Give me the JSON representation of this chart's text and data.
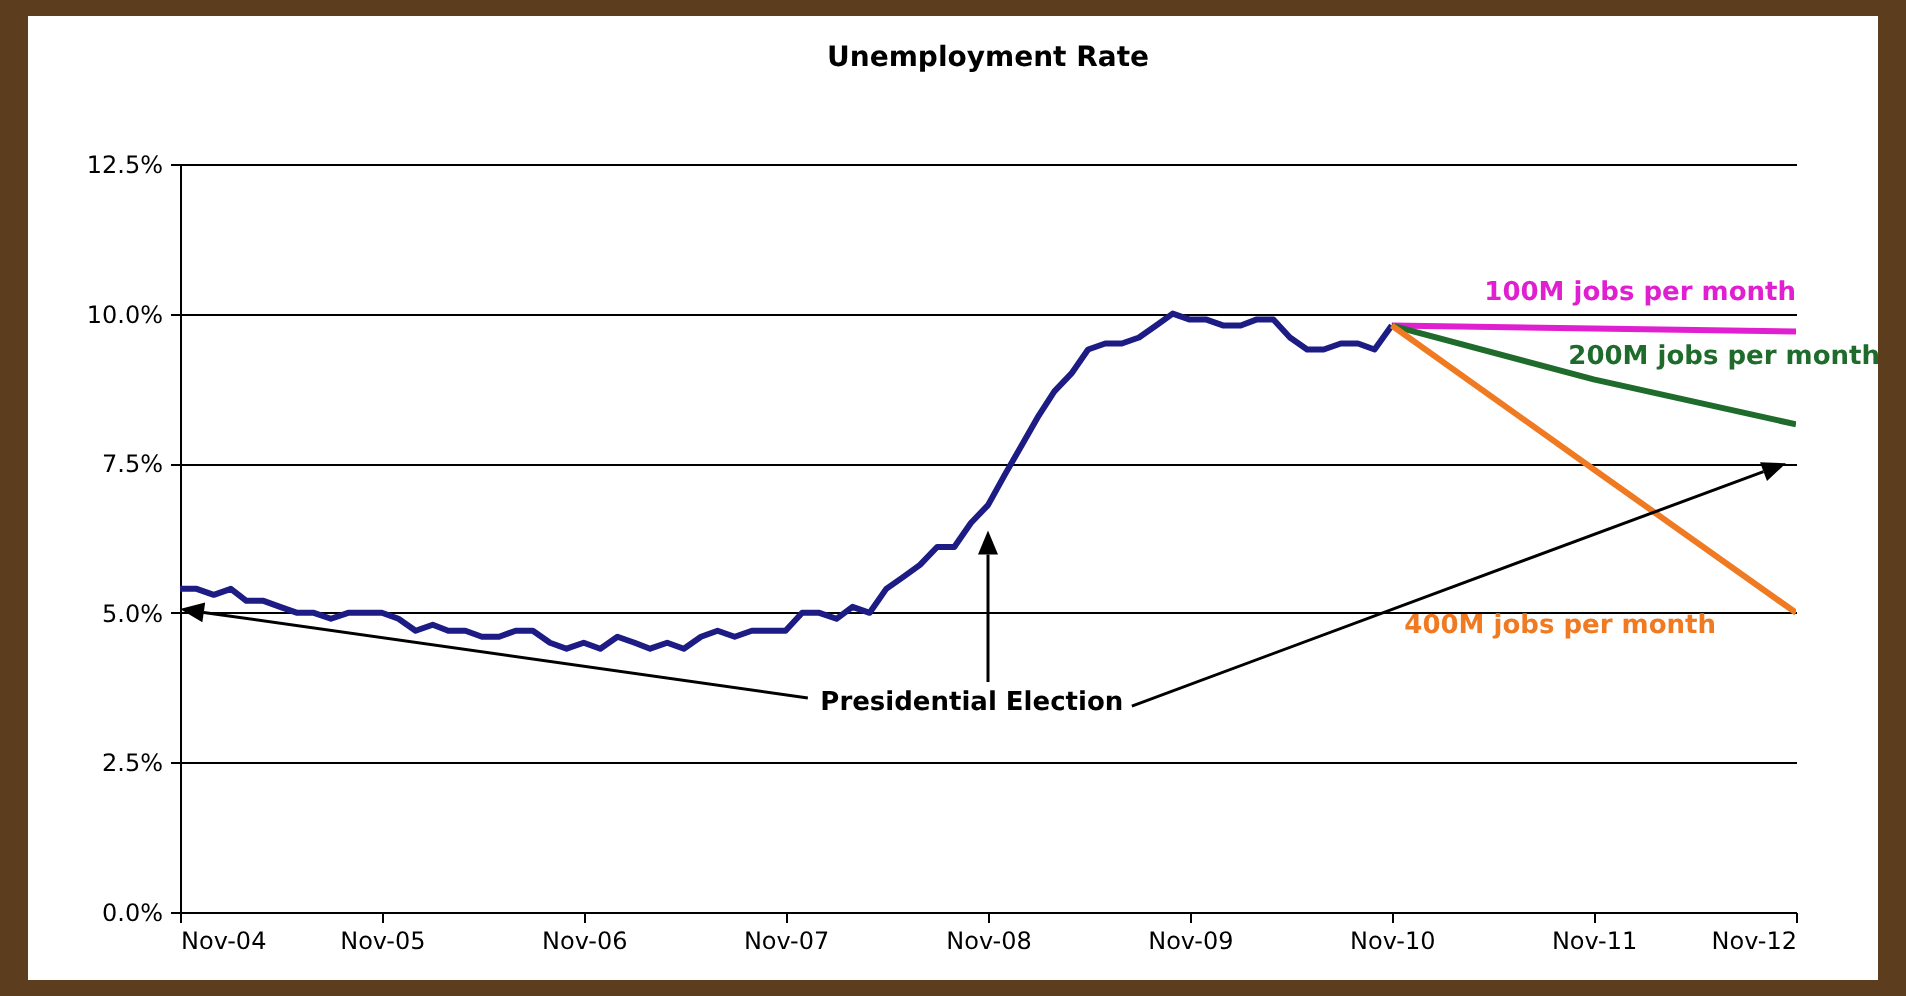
{
  "chart_data": {
    "type": "line",
    "title": "Unemployment Rate",
    "xlim": [
      "2004-11",
      "2012-11"
    ],
    "xticks": [
      {
        "value": "2004-11",
        "label": "Nov-04"
      },
      {
        "value": "2005-11",
        "label": "Nov-05"
      },
      {
        "value": "2006-11",
        "label": "Nov-06"
      },
      {
        "value": "2007-11",
        "label": "Nov-07"
      },
      {
        "value": "2008-11",
        "label": "Nov-08"
      },
      {
        "value": "2009-11",
        "label": "Nov-09"
      },
      {
        "value": "2010-11",
        "label": "Nov-10"
      },
      {
        "value": "2011-11",
        "label": "Nov-11"
      },
      {
        "value": "2012-11",
        "label": "Nov-12"
      }
    ],
    "ylim": [
      0,
      12.5
    ],
    "yticks": [
      {
        "value": 0,
        "label": "0.0%"
      },
      {
        "value": 2.5,
        "label": "2.5%"
      },
      {
        "value": 5,
        "label": "5.0%"
      },
      {
        "value": 7.5,
        "label": "7.5%"
      },
      {
        "value": 10,
        "label": "10.0%"
      },
      {
        "value": 12.5,
        "label": "12.5%"
      }
    ],
    "grid": "y",
    "series": [
      {
        "color": "#1c1c84",
        "x": [
          "2004-11",
          "2004-12",
          "2005-01",
          "2005-02",
          "2005-03",
          "2005-04",
          "2005-05",
          "2005-06",
          "2005-07",
          "2005-08",
          "2005-09",
          "2005-10",
          "2005-11",
          "2005-12",
          "2006-01",
          "2006-02",
          "2006-03",
          "2006-04",
          "2006-05",
          "2006-06",
          "2006-07",
          "2006-08",
          "2006-09",
          "2006-10",
          "2006-11",
          "2006-12",
          "2007-01",
          "2007-02",
          "2007-03",
          "2007-04",
          "2007-05",
          "2007-06",
          "2007-07",
          "2007-08",
          "2007-09",
          "2007-10",
          "2007-11",
          "2007-12",
          "2008-01",
          "2008-02",
          "2008-03",
          "2008-04",
          "2008-05",
          "2008-06",
          "2008-07",
          "2008-08",
          "2008-09",
          "2008-10",
          "2008-11",
          "2008-12",
          "2009-01",
          "2009-02",
          "2009-03",
          "2009-04",
          "2009-05",
          "2009-06",
          "2009-07",
          "2009-08",
          "2009-09",
          "2009-10",
          "2009-11",
          "2009-12",
          "2010-01",
          "2010-02",
          "2010-03",
          "2010-04",
          "2010-05",
          "2010-06",
          "2010-07",
          "2010-08",
          "2010-09",
          "2010-10",
          "2010-11"
        ],
        "values": [
          5.4,
          5.4,
          5.3,
          5.4,
          5.2,
          5.2,
          5.1,
          5.0,
          5.0,
          4.9,
          5.0,
          5.0,
          5.0,
          4.9,
          4.7,
          4.8,
          4.7,
          4.7,
          4.6,
          4.6,
          4.7,
          4.7,
          4.5,
          4.4,
          4.5,
          4.4,
          4.6,
          4.5,
          4.4,
          4.5,
          4.4,
          4.6,
          4.7,
          4.6,
          4.7,
          4.7,
          4.7,
          5.0,
          5.0,
          4.9,
          5.1,
          5.0,
          5.4,
          5.6,
          5.8,
          6.1,
          6.1,
          6.5,
          6.8,
          7.3,
          7.8,
          8.3,
          8.7,
          9.0,
          9.4,
          9.5,
          9.5,
          9.6,
          9.8,
          10.0,
          9.9,
          9.9,
          9.8,
          9.8,
          9.9,
          9.9,
          9.6,
          9.4,
          9.4,
          9.5,
          9.5,
          9.4,
          9.8
        ]
      },
      {
        "name": "100M jobs per month",
        "color": "#e020d0",
        "x": [
          "2010-11",
          "2011-11",
          "2012-11"
        ],
        "values": [
          9.8,
          9.75,
          9.7
        ]
      },
      {
        "name": "200M jobs per month",
        "color": "#1e6b2c",
        "x": [
          "2010-11",
          "2011-11",
          "2012-11"
        ],
        "values": [
          9.8,
          8.9,
          8.15
        ]
      },
      {
        "name": "400M jobs per month",
        "color": "#f07a22",
        "x": [
          "2010-11",
          "2011-11",
          "2012-11"
        ],
        "values": [
          9.8,
          7.4,
          5.0
        ]
      }
    ],
    "annotations": [
      "Presidential Election"
    ]
  }
}
